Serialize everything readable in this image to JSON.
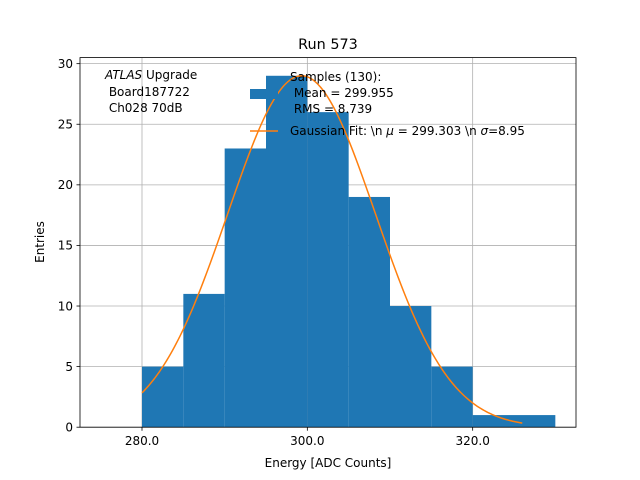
{
  "chart_data": {
    "type": "bar",
    "title": "Run 573",
    "xlabel": "Energy [ADC Counts]",
    "ylabel": "Entries",
    "xlim": [
      272.5,
      332.5
    ],
    "ylim": [
      0,
      30.5
    ],
    "grid": true,
    "xticks": [
      280,
      300,
      320
    ],
    "xtick_labels": [
      "280.0",
      "300.0",
      "320.0"
    ],
    "yticks": [
      0,
      5,
      10,
      15,
      20,
      25,
      30
    ],
    "ytick_labels": [
      "0",
      "5",
      "10",
      "15",
      "20",
      "25",
      "30"
    ],
    "histogram": {
      "bin_edges": [
        280,
        285,
        290,
        295,
        300,
        305,
        310,
        315,
        320,
        325,
        330
      ],
      "counts": [
        5,
        11,
        23,
        29,
        26,
        19,
        10,
        5,
        1,
        1
      ],
      "color": "#1f77b4"
    },
    "fit": {
      "mu": 299.303,
      "sigma": 8.95,
      "amplitude": 29.0,
      "x_range": [
        280,
        326
      ],
      "color": "#ff7f0e"
    },
    "annotation": {
      "line1_italic": "ATLAS",
      "line1_rest": " Upgrade",
      "line2": " Board187722",
      "line3": " Ch028 70dB"
    },
    "legend": {
      "position": "top-right",
      "samples_lines": [
        "Samples (130):",
        " Mean = 299.955",
        " RMS = 8.739"
      ],
      "fit_prefix": "Gaussian Fit: \\n ",
      "fit_mu_sym": "μ",
      "fit_mid": " = 299.303 \\n ",
      "fit_sigma_sym": "σ",
      "fit_suffix": "=8.95"
    }
  }
}
